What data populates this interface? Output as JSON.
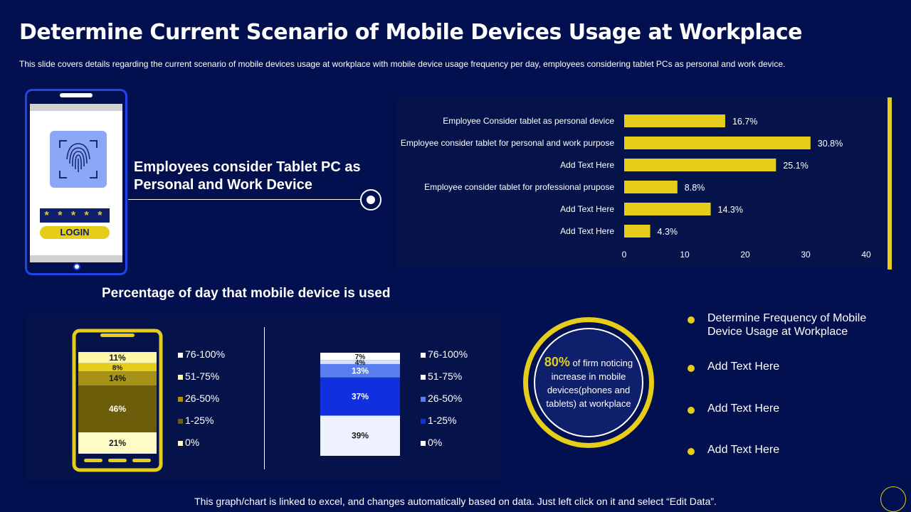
{
  "header": {
    "title": "Determine Current Scenario of Mobile Devices Usage at Workplace",
    "subtitle": "This slide covers details regarding the current scenario of mobile devices usage at workplace with mobile device usage frequency per day, employees considering tablet PCs as personal and work device."
  },
  "phone": {
    "password_mask": "* * * * *",
    "login_label": "LOGIN"
  },
  "callout": {
    "text": "Employees consider Tablet PC as Personal and Work Device"
  },
  "section": {
    "usage_title": "Percentage of day that mobile device is used"
  },
  "circle": {
    "percent": "80%",
    "text": " of firm noticing increase in mobile devices(phones and tablets) at workplace"
  },
  "bullets": [
    {
      "label": "Determine Frequency of Mobile Device Usage at Workplace"
    },
    {
      "label": "Add Text Here"
    },
    {
      "label": "Add Text Here"
    },
    {
      "label": "Add Text Here"
    }
  ],
  "footer": {
    "note": "This graph/chart is linked to excel, and changes automatically based on data. Just left click on it and select “Edit Data”."
  },
  "colors": {
    "background": "#02104f",
    "accent_yellow": "#e6cd1a",
    "accent_blue": "#1f45e8"
  },
  "chart_data": [
    {
      "type": "bar",
      "orientation": "horizontal",
      "categories": [
        "Employee Consider tablet as personal device",
        "Employee consider tablet for personal and work purpose",
        "Add Text Here",
        "Employee consider tablet for professional prupose",
        "Add Text Here",
        "Add Text Here"
      ],
      "values": [
        16.7,
        30.8,
        25.1,
        8.8,
        14.3,
        4.3
      ],
      "labels": [
        "16.7%",
        "30.8%",
        "25.1%",
        "8.8%",
        "14.3%",
        "4.3%"
      ],
      "xlim": [
        0,
        40
      ],
      "xticks": [
        "0",
        "10",
        "20",
        "30",
        "40"
      ],
      "color": "#e6cd1a",
      "title": "",
      "xlabel": "",
      "ylabel": ""
    },
    {
      "type": "bar",
      "orientation": "stacked-vertical",
      "stack_order_bottom_to_top": [
        "0%",
        "1-25%",
        "26-50%",
        "51-75%",
        "76-100%"
      ],
      "values": [
        21,
        46,
        14,
        8,
        11
      ],
      "labels": [
        "21%",
        "46%",
        "14%",
        "8%",
        "11%"
      ],
      "colors": [
        "#fffbc6",
        "#6b5d0a",
        "#a59217",
        "#e6cd1a",
        "#fff7a3"
      ],
      "legend": [
        "76-100%",
        "51-75%",
        "26-50%",
        "1-25%",
        "0%"
      ],
      "legend_colors": [
        "#ffffff",
        "#fff7a3",
        "#a59217",
        "#6b5d0a",
        "#fffbc6"
      ]
    },
    {
      "type": "bar",
      "orientation": "stacked-vertical",
      "stack_order_bottom_to_top": [
        "0%",
        "1-25%",
        "26-50%",
        "51-75%",
        "76-100%"
      ],
      "values": [
        39,
        37,
        13,
        4,
        7
      ],
      "labels": [
        "39%",
        "37%",
        "13%",
        "4%",
        "7%"
      ],
      "colors": [
        "#eef2ff",
        "#1030e0",
        "#5a7ef0",
        "#d8e0fb",
        "#ffffff"
      ],
      "legend": [
        "76-100%",
        "51-75%",
        "26-50%",
        "1-25%",
        "0%"
      ],
      "legend_colors": [
        "#ffffff",
        "#ffffff",
        "#5a7ef0",
        "#1030e0",
        "#ffffff"
      ]
    }
  ]
}
